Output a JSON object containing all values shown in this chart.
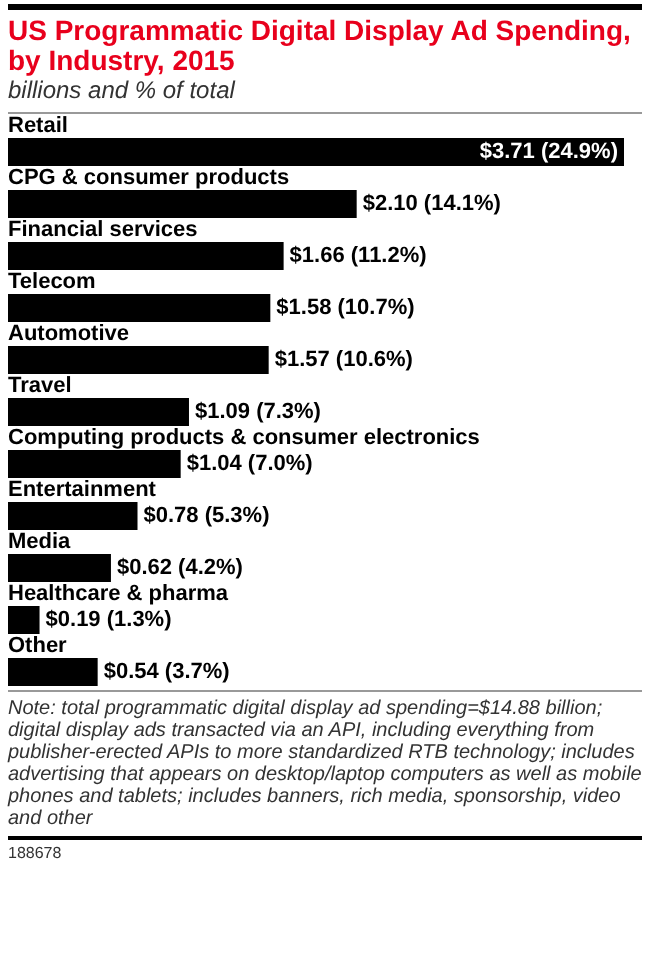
{
  "chart_data": {
    "type": "bar",
    "orientation": "horizontal",
    "title": "US Programmatic Digital Display Ad Spending, by Industry, 2015",
    "subtitle": "billions and % of total",
    "categories": [
      "Retail",
      "CPG & consumer products",
      "Financial services",
      "Telecom",
      "Automotive",
      "Travel",
      "Computing products & consumer electronics",
      "Entertainment",
      "Media",
      "Healthcare & pharma",
      "Other"
    ],
    "values": [
      3.71,
      2.1,
      1.66,
      1.58,
      1.57,
      1.09,
      1.04,
      0.78,
      0.62,
      0.19,
      0.54
    ],
    "color": "#000000",
    "value_labels": [
      "$3.71 (24.9%)",
      "$2.10 (14.1%)",
      "$1.66 (11.2%)",
      "$1.58 (10.7%)",
      "$1.57 (10.6%)",
      "$1.09 (7.3%)",
      "$1.04 (7.0%)",
      "$0.78 (5.3%)",
      "$0.62 (4.2%)",
      "$0.19 (1.3%)",
      "$0.54 (3.7%)"
    ],
    "annotations": [
      "Note: total programmatic digital display ad spending=$14.88 billion; digital display ads transacted via an API, including everything from publisher-erected APIs to more standardized RTB technology; includes advertising that appears on desktop/laptop computers as well as mobile phones and tablets; includes banners, rich media, sponsorship, video and other",
      "188678"
    ]
  }
}
